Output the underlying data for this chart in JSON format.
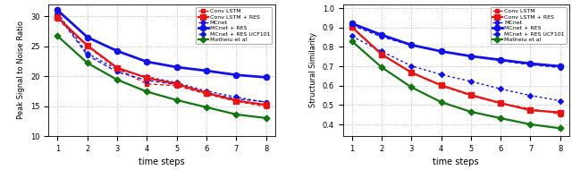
{
  "x": [
    1,
    2,
    3,
    4,
    5,
    6,
    7,
    8
  ],
  "psnr": {
    "conv_lstm": [
      29.5,
      25.0,
      21.2,
      18.7,
      18.4,
      17.0,
      15.8,
      14.9
    ],
    "conv_lstm_res": [
      29.8,
      25.1,
      21.4,
      19.7,
      18.7,
      17.2,
      15.9,
      15.2
    ],
    "mcnet": [
      30.2,
      23.5,
      20.7,
      19.3,
      18.6,
      17.2,
      16.2,
      15.7
    ],
    "mcnet_res": [
      31.0,
      26.5,
      24.2,
      22.4,
      21.5,
      20.9,
      20.2,
      19.8
    ],
    "mcnet_res_ucf101": [
      30.5,
      23.8,
      21.1,
      19.9,
      18.9,
      17.5,
      16.5,
      15.6
    ],
    "matheiu": [
      26.7,
      22.2,
      19.4,
      17.4,
      16.0,
      14.8,
      13.6,
      13.0
    ]
  },
  "ssim": {
    "conv_lstm": [
      0.9,
      0.76,
      0.667,
      0.6,
      0.548,
      0.508,
      0.48,
      0.453
    ],
    "conv_lstm_res": [
      0.903,
      0.762,
      0.668,
      0.602,
      0.552,
      0.51,
      0.473,
      0.462
    ],
    "mcnet": [
      0.912,
      0.852,
      0.808,
      0.778,
      0.752,
      0.728,
      0.708,
      0.693
    ],
    "mcnet_res": [
      0.921,
      0.862,
      0.81,
      0.777,
      0.752,
      0.733,
      0.714,
      0.7
    ],
    "mcnet_res_ucf101": [
      0.855,
      0.777,
      0.702,
      0.657,
      0.622,
      0.583,
      0.549,
      0.522
    ],
    "matheiu": [
      0.83,
      0.695,
      0.592,
      0.515,
      0.465,
      0.432,
      0.4,
      0.38
    ]
  },
  "c_red": "#EE1111",
  "c_blue": "#1111EE",
  "c_green": "#117711",
  "ylim_psnr": [
    10,
    32
  ],
  "ylim_ssim": [
    0.34,
    1.02
  ],
  "yticks_psnr": [
    10,
    15,
    20,
    25,
    30
  ],
  "yticks_ssim": [
    0.4,
    0.5,
    0.6,
    0.7,
    0.8,
    0.9,
    1.0
  ],
  "xlabel": "time steps",
  "ylabel_psnr": "Peak Signal to Noise Ratio",
  "ylabel_ssim": "Structural Similarity",
  "legend_labels": [
    "Conv LSTM",
    "Conv LSTM + RES",
    "MCnet",
    "MCnet + RES",
    "MCnet + RES UCF101",
    "Matheiu et al"
  ]
}
